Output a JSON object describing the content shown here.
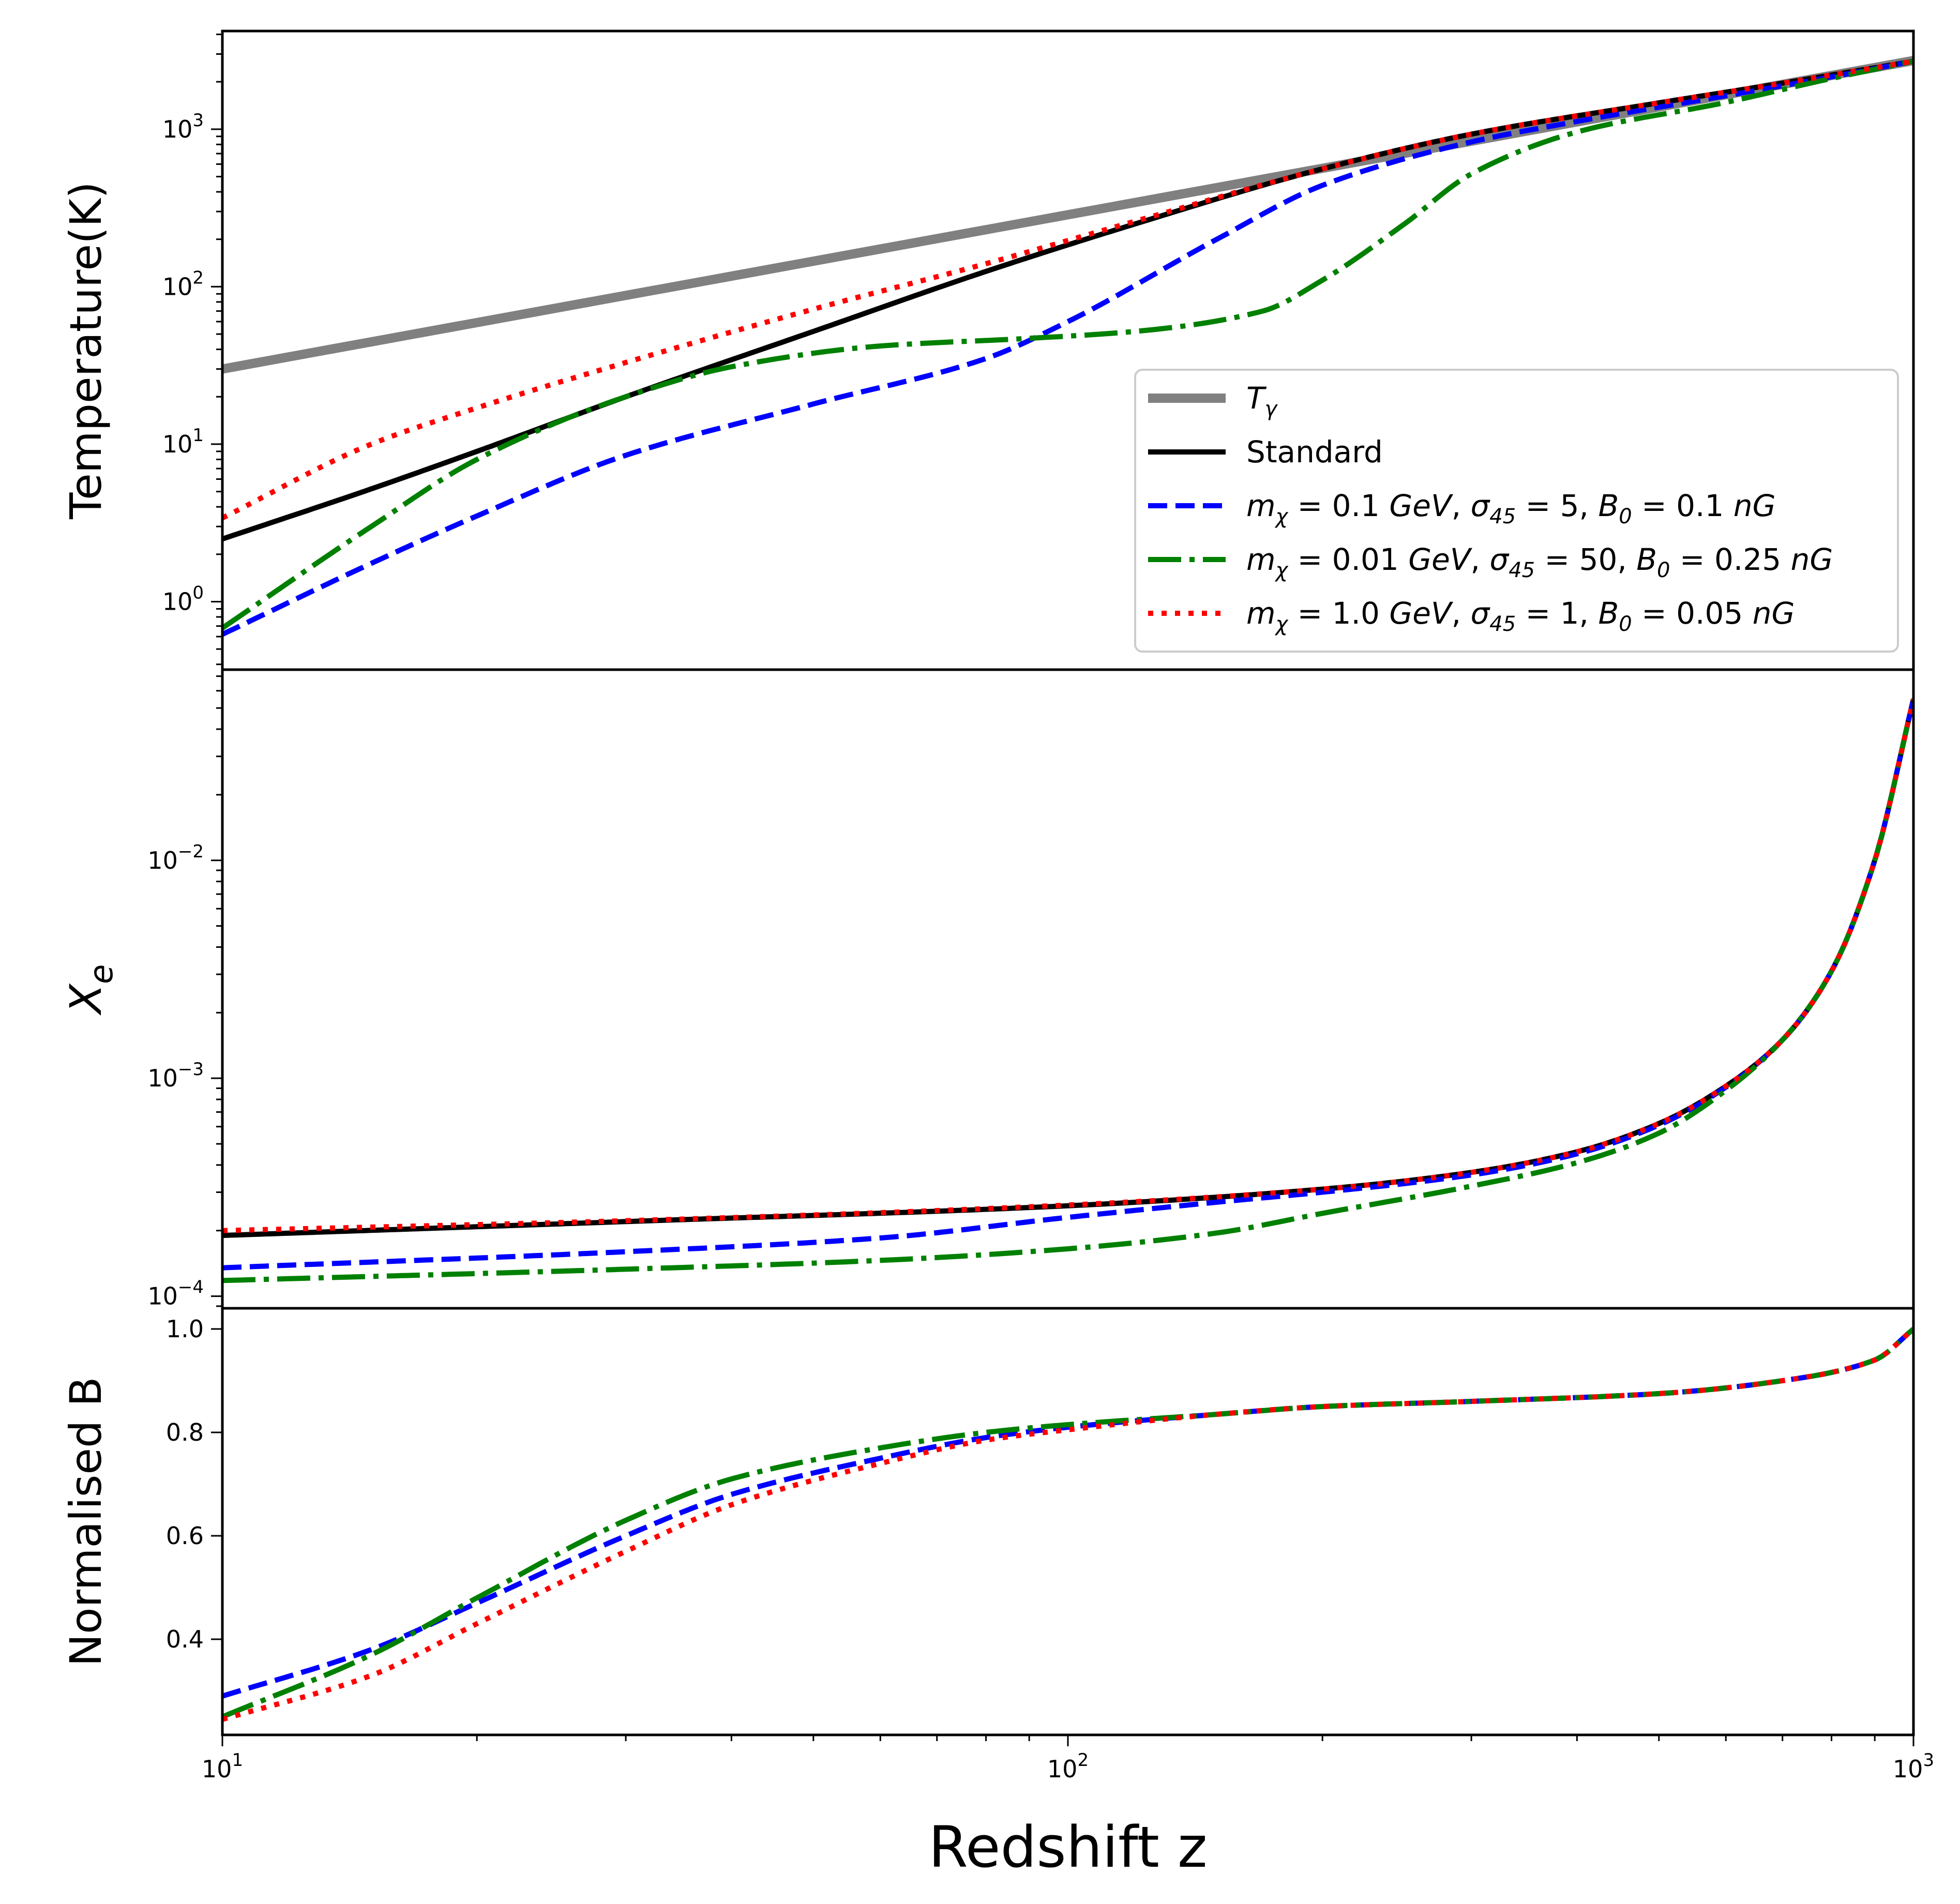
{
  "chart_data": {
    "type": "line",
    "x_scale": "log",
    "xlim": [
      10,
      1000
    ],
    "xlabel": "Redshift z",
    "x_ticks": [
      {
        "value": 10,
        "base": "10",
        "exp": "1"
      },
      {
        "value": 100,
        "base": "10",
        "exp": "2"
      },
      {
        "value": 1000,
        "base": "10",
        "exp": "3"
      }
    ],
    "legend": {
      "placement": "lower-right of top panel",
      "entries": [
        {
          "key": "Tgamma",
          "label": "T",
          "sub": "γ",
          "color": "#808080",
          "style": "solid-thick"
        },
        {
          "key": "standard",
          "label": "Standard",
          "color": "#000000",
          "style": "solid"
        },
        {
          "key": "blue",
          "label": "mχ = 0.1 GeV, σ45 = 5, B0 = 0.1 nG",
          "parts": [
            [
              "m",
              ""
            ],
            [
              "χ",
              "sub"
            ],
            [
              " = 0.1 ",
              ""
            ],
            [
              "GeV",
              ""
            ],
            [
              ", ",
              ""
            ],
            [
              "σ",
              ""
            ],
            [
              "45",
              "sub"
            ],
            [
              " = 5, ",
              ""
            ],
            [
              "B",
              ""
            ],
            [
              "0",
              "sub"
            ],
            [
              " = 0.1 ",
              ""
            ],
            [
              "nG",
              ""
            ]
          ],
          "color": "#0000ff",
          "style": "dashed"
        },
        {
          "key": "green",
          "label": "mχ = 0.01 GeV, σ45 = 50, B0 = 0.25 nG",
          "parts": [
            [
              "m",
              ""
            ],
            [
              "χ",
              "sub"
            ],
            [
              " = 0.01 ",
              ""
            ],
            [
              "GeV",
              ""
            ],
            [
              ", ",
              ""
            ],
            [
              "σ",
              ""
            ],
            [
              "45",
              "sub"
            ],
            [
              " = 50, ",
              ""
            ],
            [
              "B",
              ""
            ],
            [
              "0",
              "sub"
            ],
            [
              " = 0.25 ",
              ""
            ],
            [
              "nG",
              ""
            ]
          ],
          "color": "#008000",
          "style": "dashdot"
        },
        {
          "key": "red",
          "label": "mχ = 1.0 GeV, σ45 = 1, B0 = 0.05 nG",
          "parts": [
            [
              "m",
              ""
            ],
            [
              "χ",
              "sub"
            ],
            [
              " = 1.0 ",
              ""
            ],
            [
              "GeV",
              ""
            ],
            [
              ", ",
              ""
            ],
            [
              "σ",
              ""
            ],
            [
              "45",
              "sub"
            ],
            [
              " = 1, ",
              ""
            ],
            [
              "B",
              ""
            ],
            [
              "0",
              "sub"
            ],
            [
              " = 0.05 ",
              ""
            ],
            [
              "nG",
              ""
            ]
          ],
          "color": "#ff0000",
          "style": "dotted"
        }
      ]
    },
    "panels": [
      {
        "id": "temperature",
        "ylabel": "Temperature(K)",
        "y_scale": "log",
        "ylim": [
          0.37,
          4200
        ],
        "y_ticks": [
          {
            "value": 1,
            "base": "10",
            "exp": "0"
          },
          {
            "value": 10,
            "base": "10",
            "exp": "1"
          },
          {
            "value": 100,
            "base": "10",
            "exp": "2"
          },
          {
            "value": 1000,
            "base": "10",
            "exp": "3"
          }
        ],
        "series": [
          {
            "key": "Tgamma",
            "x": [
              10,
              1000
            ],
            "y": [
              30,
              2730
            ]
          },
          {
            "key": "standard",
            "x": [
              10,
              15,
              20,
              30,
              50,
              80,
              120,
              200,
              300,
              500,
              700,
              1000
            ],
            "y": [
              2.5,
              5.2,
              9,
              20,
              52,
              125,
              250,
              560,
              930,
              1470,
              1960,
              2700
            ]
          },
          {
            "key": "blue",
            "x": [
              10,
              15,
              20,
              30,
              50,
              80,
              100,
              150,
              200,
              300,
              400,
              600,
              800,
              1000
            ],
            "y": [
              0.62,
              1.75,
              3.5,
              8.5,
              18,
              35,
              60,
              200,
              440,
              830,
              1120,
              1630,
              2150,
              2700
            ]
          },
          {
            "key": "green",
            "x": [
              10,
              15,
              20,
              30,
              40,
              60,
              90,
              120,
              170,
              200,
              250,
              300,
              400,
              600,
              800,
              1000
            ],
            "y": [
              0.68,
              3,
              8,
              20,
              31,
              42,
              47,
              52,
              70,
              110,
              250,
              520,
              960,
              1480,
              2100,
              2700
            ]
          },
          {
            "key": "red",
            "x": [
              10,
              15,
              20,
              30,
              50,
              80,
              120,
              200,
              300,
              500,
              700,
              1000
            ],
            "y": [
              3.4,
              10,
              17,
              33,
              72,
              140,
              260,
              560,
              930,
              1470,
              1960,
              2700
            ]
          }
        ]
      },
      {
        "id": "xe",
        "ylabel": "Xe",
        "y_scale": "log",
        "ylim": [
          8.8e-05,
          0.075
        ],
        "y_ticks": [
          {
            "value": 0.0001,
            "base": "10",
            "exp": "−4"
          },
          {
            "value": 0.001,
            "base": "10",
            "exp": "−3"
          },
          {
            "value": 0.01,
            "base": "10",
            "exp": "−2"
          }
        ],
        "series": [
          {
            "key": "standard",
            "x": [
              10,
              30,
              100,
              200,
              300,
              400,
              500,
              600,
              700,
              800,
              900,
              1000
            ],
            "y": [
              0.00019,
              0.00022,
              0.00026,
              0.00031,
              0.00037,
              0.00046,
              0.00062,
              0.00092,
              0.0015,
              0.0031,
              0.01,
              0.055
            ]
          },
          {
            "key": "blue",
            "x": [
              10,
              30,
              60,
              100,
              150,
              200,
              300,
              400,
              500,
              600,
              700,
              800,
              900,
              1000
            ],
            "y": [
              0.000135,
              0.00016,
              0.000185,
              0.00023,
              0.00027,
              0.0003,
              0.00036,
              0.00045,
              0.00061,
              0.00091,
              0.0015,
              0.0031,
              0.01,
              0.055
            ]
          },
          {
            "key": "green",
            "x": [
              10,
              30,
              60,
              100,
              150,
              200,
              300,
              400,
              500,
              600,
              700,
              800,
              900,
              1000
            ],
            "y": [
              0.000118,
              0.000133,
              0.000146,
              0.000165,
              0.000195,
              0.00024,
              0.00032,
              0.00041,
              0.00056,
              0.00088,
              0.0015,
              0.0031,
              0.01,
              0.055
            ]
          },
          {
            "key": "red",
            "x": [
              10,
              30,
              100,
              200,
              300,
              400,
              500,
              600,
              700,
              800,
              900,
              1000
            ],
            "y": [
              0.0002,
              0.000222,
              0.000262,
              0.00031,
              0.00037,
              0.00046,
              0.00062,
              0.00092,
              0.0015,
              0.0031,
              0.01,
              0.055
            ]
          }
        ]
      },
      {
        "id": "normB",
        "ylabel": "Normalised B",
        "y_scale": "linear",
        "ylim": [
          0.215,
          1.04
        ],
        "y_ticks": [
          {
            "value": 0.4,
            "label": "0.4"
          },
          {
            "value": 0.6,
            "label": "0.6"
          },
          {
            "value": 0.8,
            "label": "0.8"
          },
          {
            "value": 1.0,
            "label": "1.0"
          }
        ],
        "series": [
          {
            "key": "blue",
            "x": [
              10,
              15,
              20,
              30,
              40,
              60,
              80,
              100,
              150,
              200,
              300,
              500,
              700,
              900,
              1000
            ],
            "y": [
              0.29,
              0.38,
              0.47,
              0.6,
              0.68,
              0.75,
              0.79,
              0.81,
              0.835,
              0.85,
              0.86,
              0.875,
              0.9,
              0.94,
              1.0
            ]
          },
          {
            "key": "green",
            "x": [
              10,
              15,
              20,
              30,
              40,
              60,
              80,
              100,
              150,
              200,
              300,
              500,
              700,
              900,
              1000
            ],
            "y": [
              0.25,
              0.37,
              0.48,
              0.63,
              0.71,
              0.77,
              0.8,
              0.815,
              0.835,
              0.85,
              0.86,
              0.875,
              0.9,
              0.94,
              1.0
            ]
          },
          {
            "key": "red",
            "x": [
              10,
              15,
              20,
              30,
              40,
              60,
              80,
              100,
              150,
              200,
              300,
              500,
              700,
              900,
              1000
            ],
            "y": [
              0.245,
              0.33,
              0.43,
              0.57,
              0.66,
              0.74,
              0.785,
              0.805,
              0.835,
              0.85,
              0.86,
              0.875,
              0.9,
              0.94,
              1.0
            ]
          }
        ]
      }
    ]
  }
}
